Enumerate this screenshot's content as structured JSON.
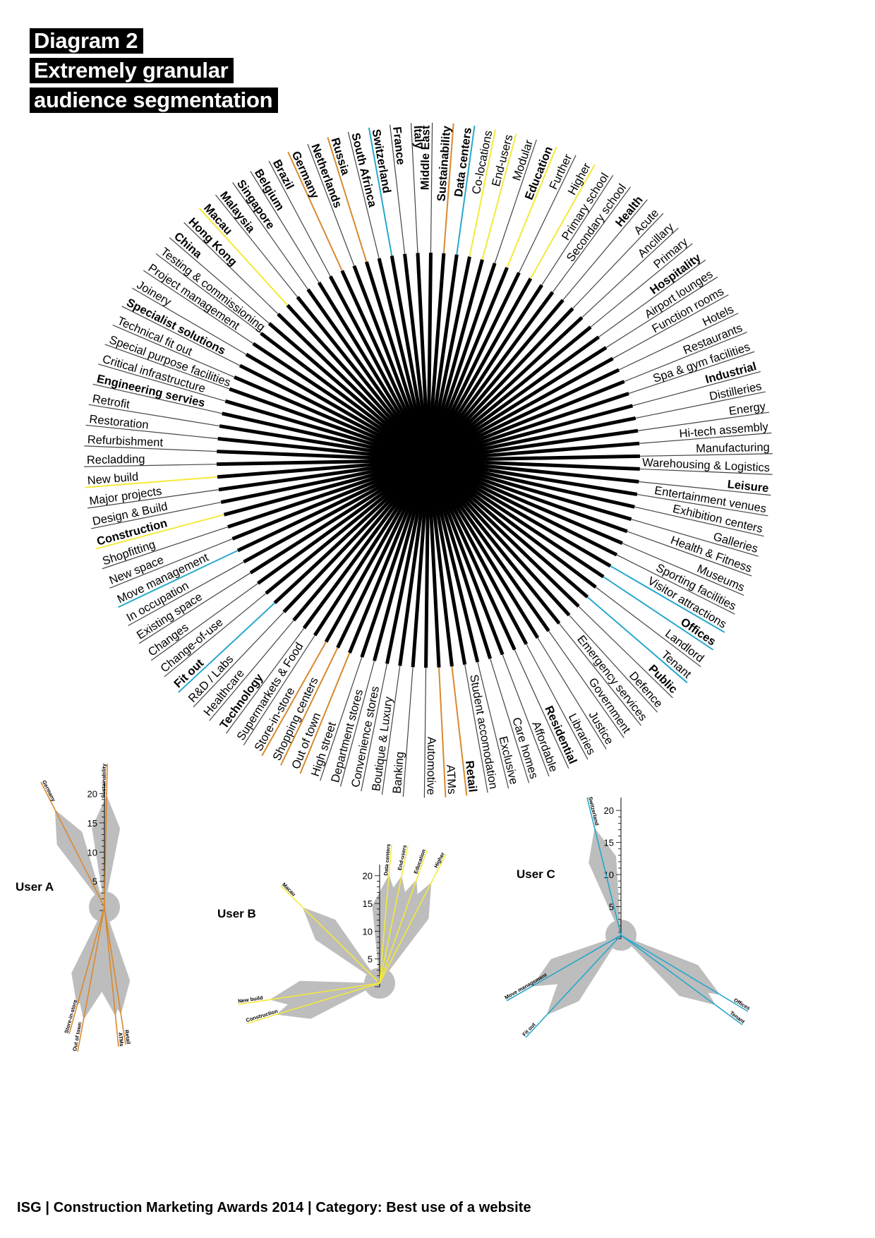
{
  "title": [
    "Diagram 2",
    "Extremely granular",
    "audience segmentation"
  ],
  "colors": {
    "ink": "#000000",
    "yellow": "#f4e93a",
    "orange": "#d9892e",
    "blue": "#27a7cc",
    "grey": "#bdbdbd"
  },
  "segments": [
    {
      "label": "Retail",
      "bold": true,
      "color": "orange"
    },
    {
      "label": "ATMs",
      "color": "orange"
    },
    {
      "label": "Automotive"
    },
    {
      "label": "Banking"
    },
    {
      "label": "Boutique & Luxury"
    },
    {
      "label": "Convenience stores"
    },
    {
      "label": "Department stores"
    },
    {
      "label": "High street"
    },
    {
      "label": "Out of town",
      "color": "orange"
    },
    {
      "label": "Shopping centers",
      "color": "orange"
    },
    {
      "label": "Store-in-store",
      "color": "orange"
    },
    {
      "label": "Supermarkets & Food"
    },
    {
      "label": "Technology",
      "bold": true
    },
    {
      "label": "Healthcare"
    },
    {
      "label": "R&D / Labs"
    },
    {
      "label": "Fit out",
      "bold": true,
      "color": "blue"
    },
    {
      "label": "Change-of-use"
    },
    {
      "label": "Changes"
    },
    {
      "label": "Existing space"
    },
    {
      "label": "In occupation"
    },
    {
      "label": "Move management",
      "color": "blue"
    },
    {
      "label": "New space"
    },
    {
      "label": "Shopfitting"
    },
    {
      "label": "Construction",
      "bold": true,
      "color": "yellow"
    },
    {
      "label": "Design & Build"
    },
    {
      "label": "Major projects"
    },
    {
      "label": "New build",
      "color": "yellow"
    },
    {
      "label": "Recladding"
    },
    {
      "label": "Refurbishment"
    },
    {
      "label": "Restoration"
    },
    {
      "label": "Retrofit"
    },
    {
      "label": "Engineering servies",
      "bold": true
    },
    {
      "label": "Critical infrastructure"
    },
    {
      "label": "Special purpose facilities"
    },
    {
      "label": "Technical fit out"
    },
    {
      "label": "Specialist solutions",
      "bold": true
    },
    {
      "label": "Joinery"
    },
    {
      "label": "Project management"
    },
    {
      "label": "Testing & commissioning"
    },
    {
      "label": "China",
      "bold": true
    },
    {
      "label": "Hong Kong",
      "bold": true
    },
    {
      "label": "Macau",
      "bold": true,
      "color": "yellow"
    },
    {
      "label": "Malaysia",
      "bold": true
    },
    {
      "label": "Singapore",
      "bold": true
    },
    {
      "label": "Belgium",
      "bold": true
    },
    {
      "label": "Brazil",
      "bold": true
    },
    {
      "label": "Germany",
      "bold": true,
      "color": "orange"
    },
    {
      "label": "Netherlands",
      "bold": true
    },
    {
      "label": "Russia",
      "bold": true,
      "color": "orange"
    },
    {
      "label": "South Afrinca",
      "bold": true
    },
    {
      "label": "Switzerland",
      "bold": true,
      "color": "blue"
    },
    {
      "label": "France",
      "bold": true
    },
    {
      "label": "Italy",
      "bold": true
    },
    {
      "label": "Middle East",
      "bold": true
    },
    {
      "label": "Sustainability",
      "bold": true,
      "color": "orange"
    },
    {
      "label": "Data centers",
      "bold": true,
      "color": "blue"
    },
    {
      "label": "Co-locations",
      "color": "yellow"
    },
    {
      "label": "End-users",
      "color": "yellow"
    },
    {
      "label": "Modular"
    },
    {
      "label": "Education",
      "bold": true,
      "color": "yellow"
    },
    {
      "label": "Further"
    },
    {
      "label": "Higher",
      "color": "yellow"
    },
    {
      "label": "Primary school"
    },
    {
      "label": "Secondary school"
    },
    {
      "label": "Health",
      "bold": true
    },
    {
      "label": "Acute"
    },
    {
      "label": "Ancillary"
    },
    {
      "label": "Primary"
    },
    {
      "label": "Hospitality",
      "bold": true
    },
    {
      "label": "Airport lounges"
    },
    {
      "label": "Function rooms"
    },
    {
      "label": "Hotels"
    },
    {
      "label": "Restaurants"
    },
    {
      "label": "Spa & gym facilities"
    },
    {
      "label": "Industrial",
      "bold": true
    },
    {
      "label": "Distilleries"
    },
    {
      "label": "Energy"
    },
    {
      "label": "Hi-tech assembly"
    },
    {
      "label": "Manufacturing"
    },
    {
      "label": "Warehousing & Logistics"
    },
    {
      "label": "Leisure",
      "bold": true
    },
    {
      "label": "Entertainment venues"
    },
    {
      "label": "Exhibition centers"
    },
    {
      "label": "Galleries"
    },
    {
      "label": "Health & Fitness"
    },
    {
      "label": "Museums"
    },
    {
      "label": "Sporting facilities"
    },
    {
      "label": "Visitor attractions",
      "color": "blue"
    },
    {
      "label": "Offices",
      "bold": true,
      "color": "blue"
    },
    {
      "label": "Landlord"
    },
    {
      "label": "Tenant",
      "color": "blue"
    },
    {
      "label": "Public",
      "bold": true
    },
    {
      "label": "Defence"
    },
    {
      "label": "Emergency services"
    },
    {
      "label": "Government"
    },
    {
      "label": "Justice"
    },
    {
      "label": "Libraries"
    },
    {
      "label": "Residential",
      "bold": true
    },
    {
      "label": "Affordable"
    },
    {
      "label": "Care homes"
    },
    {
      "label": "Exclusive"
    },
    {
      "label": "Student accomodation"
    }
  ],
  "users": [
    {
      "name": "User A",
      "color": "orange",
      "scale": [
        "20",
        "15",
        "10",
        "5"
      ],
      "spokes": [
        "Germany",
        "Sustainability",
        "Store-in-store",
        "Out of town",
        "ATMs",
        "Retail"
      ]
    },
    {
      "name": "User B",
      "color": "yellow",
      "scale": [
        "20",
        "15",
        "10",
        "5"
      ],
      "spokes": [
        "Macau",
        "Data centers",
        "End-users",
        "Education",
        "Higher",
        "New build",
        "Construction"
      ]
    },
    {
      "name": "User C",
      "color": "blue",
      "scale": [
        "20",
        "15",
        "10",
        "5"
      ],
      "spokes": [
        "Switzerland",
        "Move management",
        "Fit out",
        "Offices",
        "Tenant"
      ]
    }
  ],
  "footer": "ISG | Construction Marketing Awards 2014 | Category: Best use of a website"
}
